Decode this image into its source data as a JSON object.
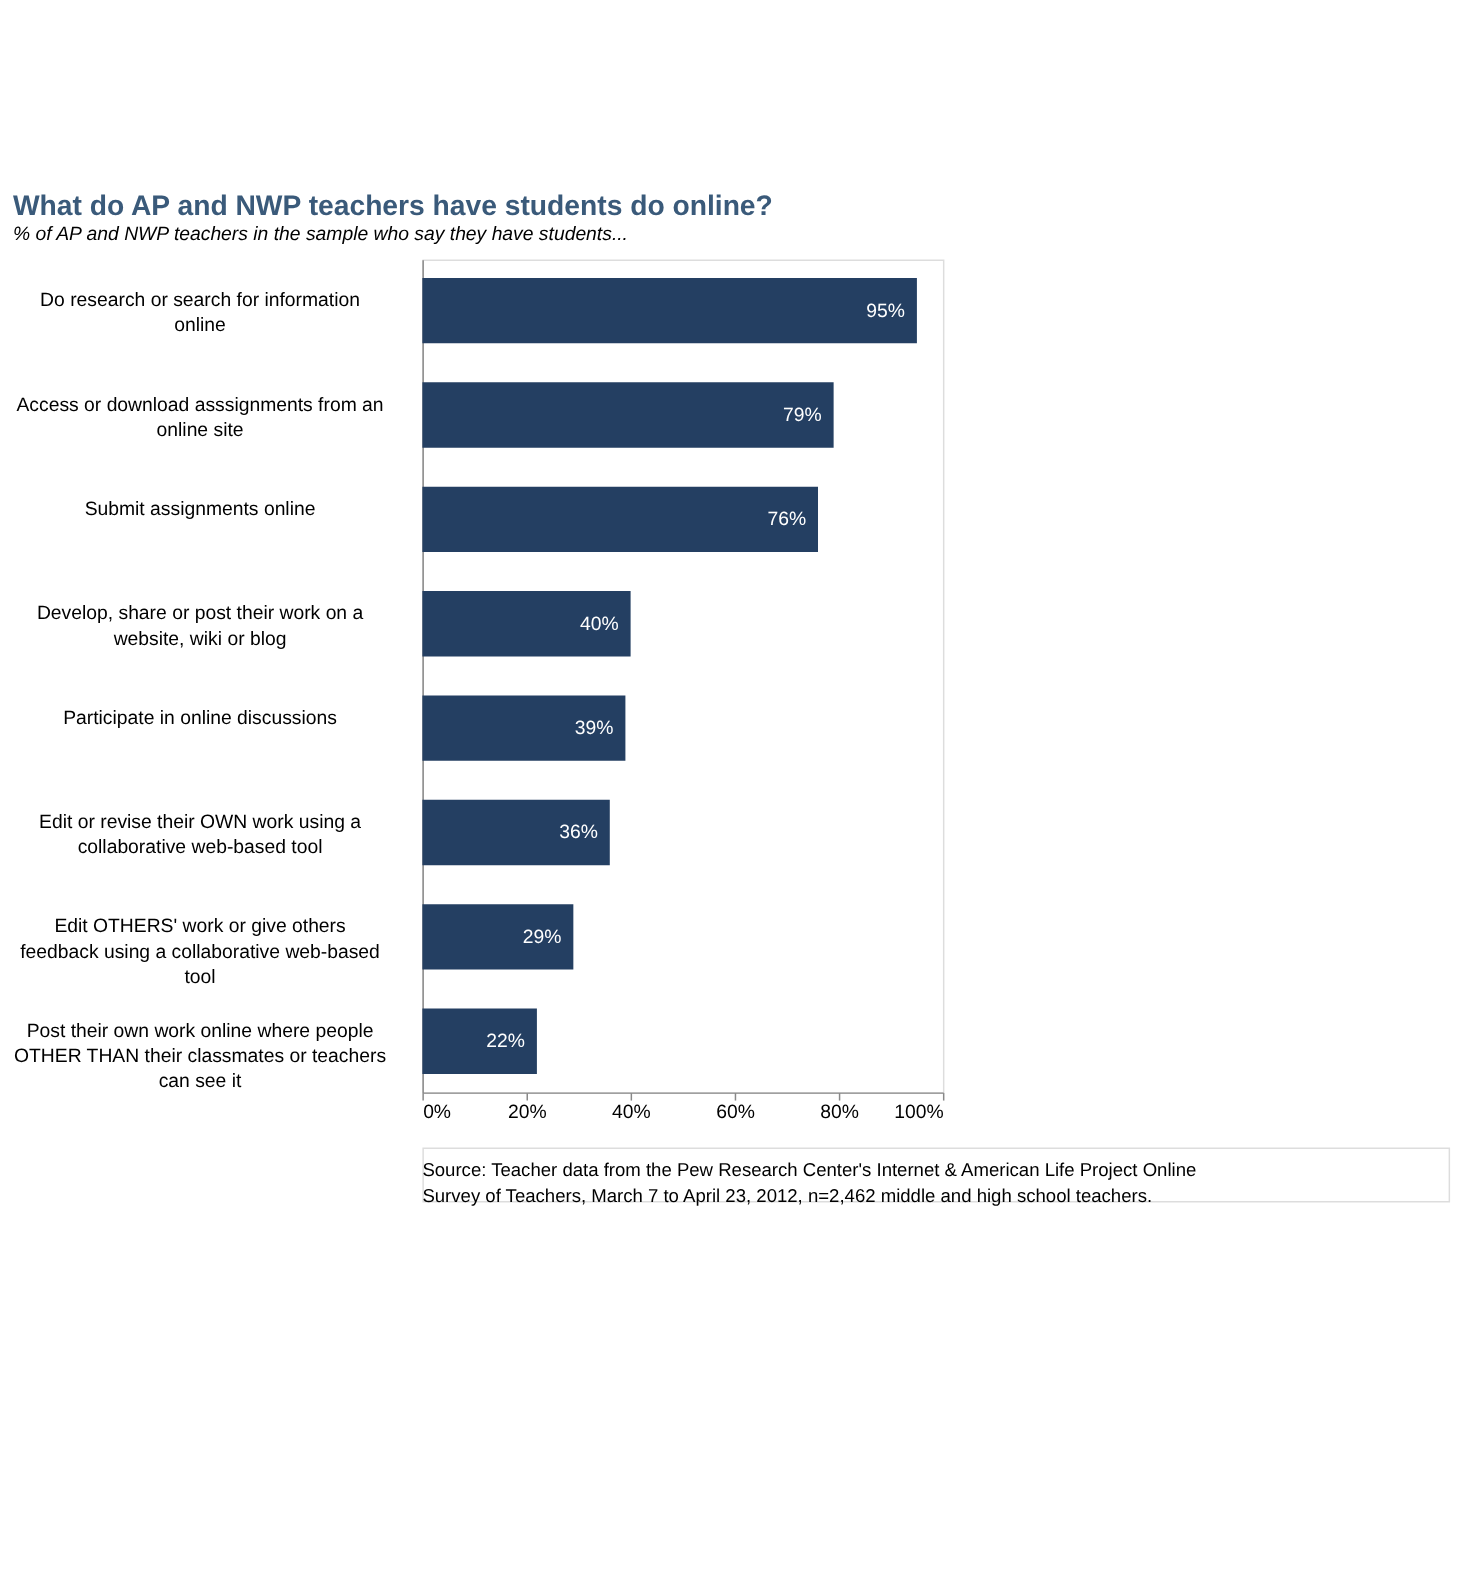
{
  "chart_data": {
    "type": "bar",
    "orientation": "horizontal",
    "title": "What do AP and NWP teachers have students do online?",
    "subtitle": "% of AP and NWP teachers in the sample who say they have students...",
    "categories": [
      "Do research or search for information online",
      "Access or download asssignments from an online site",
      "Submit assignments online",
      "Develop, share or post their work on a website, wiki or blog",
      "Participate in online discussions",
      "Edit or revise their OWN work using a collaborative web-based tool",
      "Edit OTHERS' work or give others feedback using a collaborative web-based tool",
      "Post their own work online where people OTHER THAN their classmates or teachers can see it"
    ],
    "values": [
      95,
      79,
      76,
      40,
      39,
      36,
      29,
      22
    ],
    "value_labels": [
      "95%",
      "79%",
      "76%",
      "40%",
      "39%",
      "36%",
      "29%",
      "22%"
    ],
    "color": "#243f62",
    "xlim": [
      0,
      100
    ],
    "xticks": [
      {
        "value": 0,
        "label": "0%"
      },
      {
        "value": 20,
        "label": "20%"
      },
      {
        "value": 40,
        "label": "40%"
      },
      {
        "value": 60,
        "label": "60%"
      },
      {
        "value": 80,
        "label": "80%"
      },
      {
        "value": 100,
        "label": "100%"
      }
    ],
    "grid": false,
    "annotations": [
      "Source: Teacher data from the Pew Research Center's Internet & American Life Project Online Survey of Teachers, March 7 to April 23, 2012, n=2,462 middle and high school teachers."
    ]
  }
}
